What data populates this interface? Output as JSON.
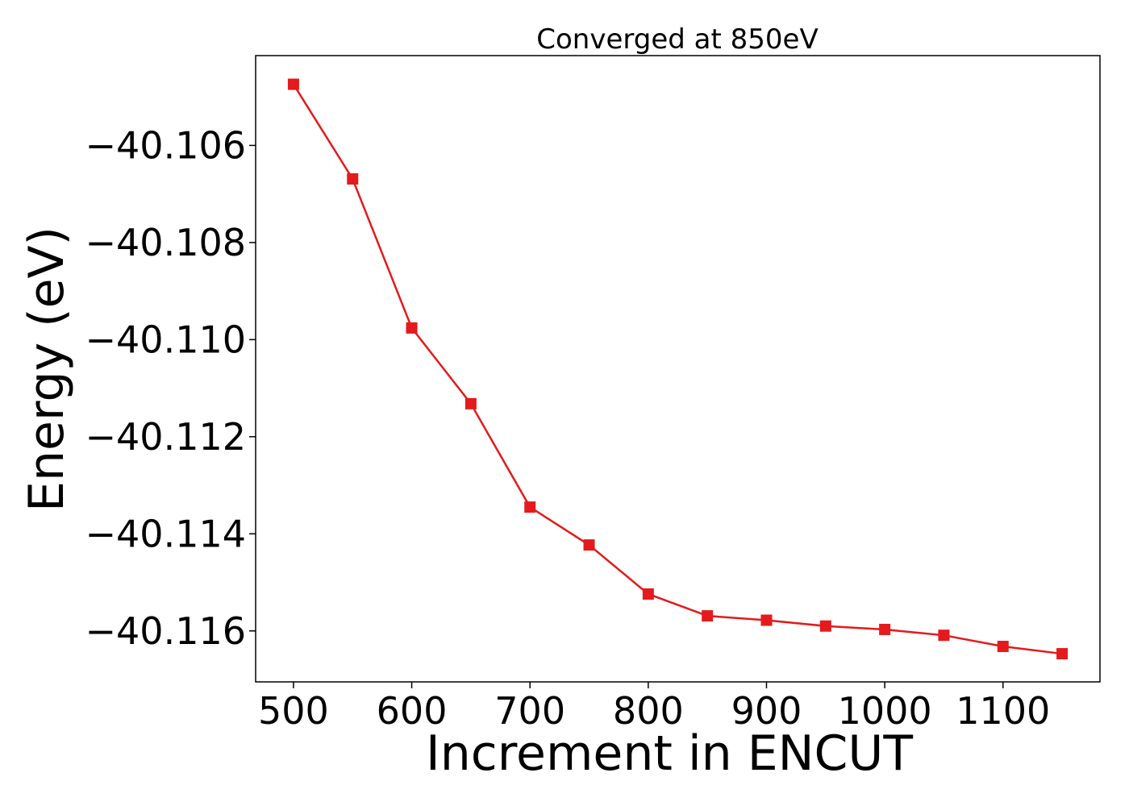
{
  "chart_data": {
    "type": "line",
    "title": "Converged at 850eV",
    "xlabel": "Increment in ENCUT",
    "ylabel": "Energy (eV)",
    "x": [
      500,
      550,
      600,
      650,
      700,
      750,
      800,
      850,
      900,
      950,
      1000,
      1050,
      1100,
      1150
    ],
    "series": [
      {
        "values": [
          -40.10474,
          -40.10669,
          -40.10976,
          -40.11132,
          -40.11345,
          -40.11423,
          -40.11524,
          -40.11569,
          -40.11578,
          -40.1159,
          -40.11597,
          -40.11609,
          -40.11632,
          -40.11647
        ],
        "color": "#e41a1c",
        "marker": "square"
      }
    ],
    "xlim": [
      468,
      1182
    ],
    "ylim": [
      -40.11705,
      -40.10415
    ],
    "xticks": [
      500,
      600,
      700,
      800,
      900,
      1000,
      1100
    ],
    "yticks": [
      -40.106,
      -40.108,
      -40.11,
      -40.112,
      -40.114,
      -40.116
    ],
    "ytick_labels": [
      "−40.106",
      "−40.108",
      "−40.110",
      "−40.112",
      "−40.114",
      "−40.116"
    ],
    "grid": false,
    "legend": false
  }
}
